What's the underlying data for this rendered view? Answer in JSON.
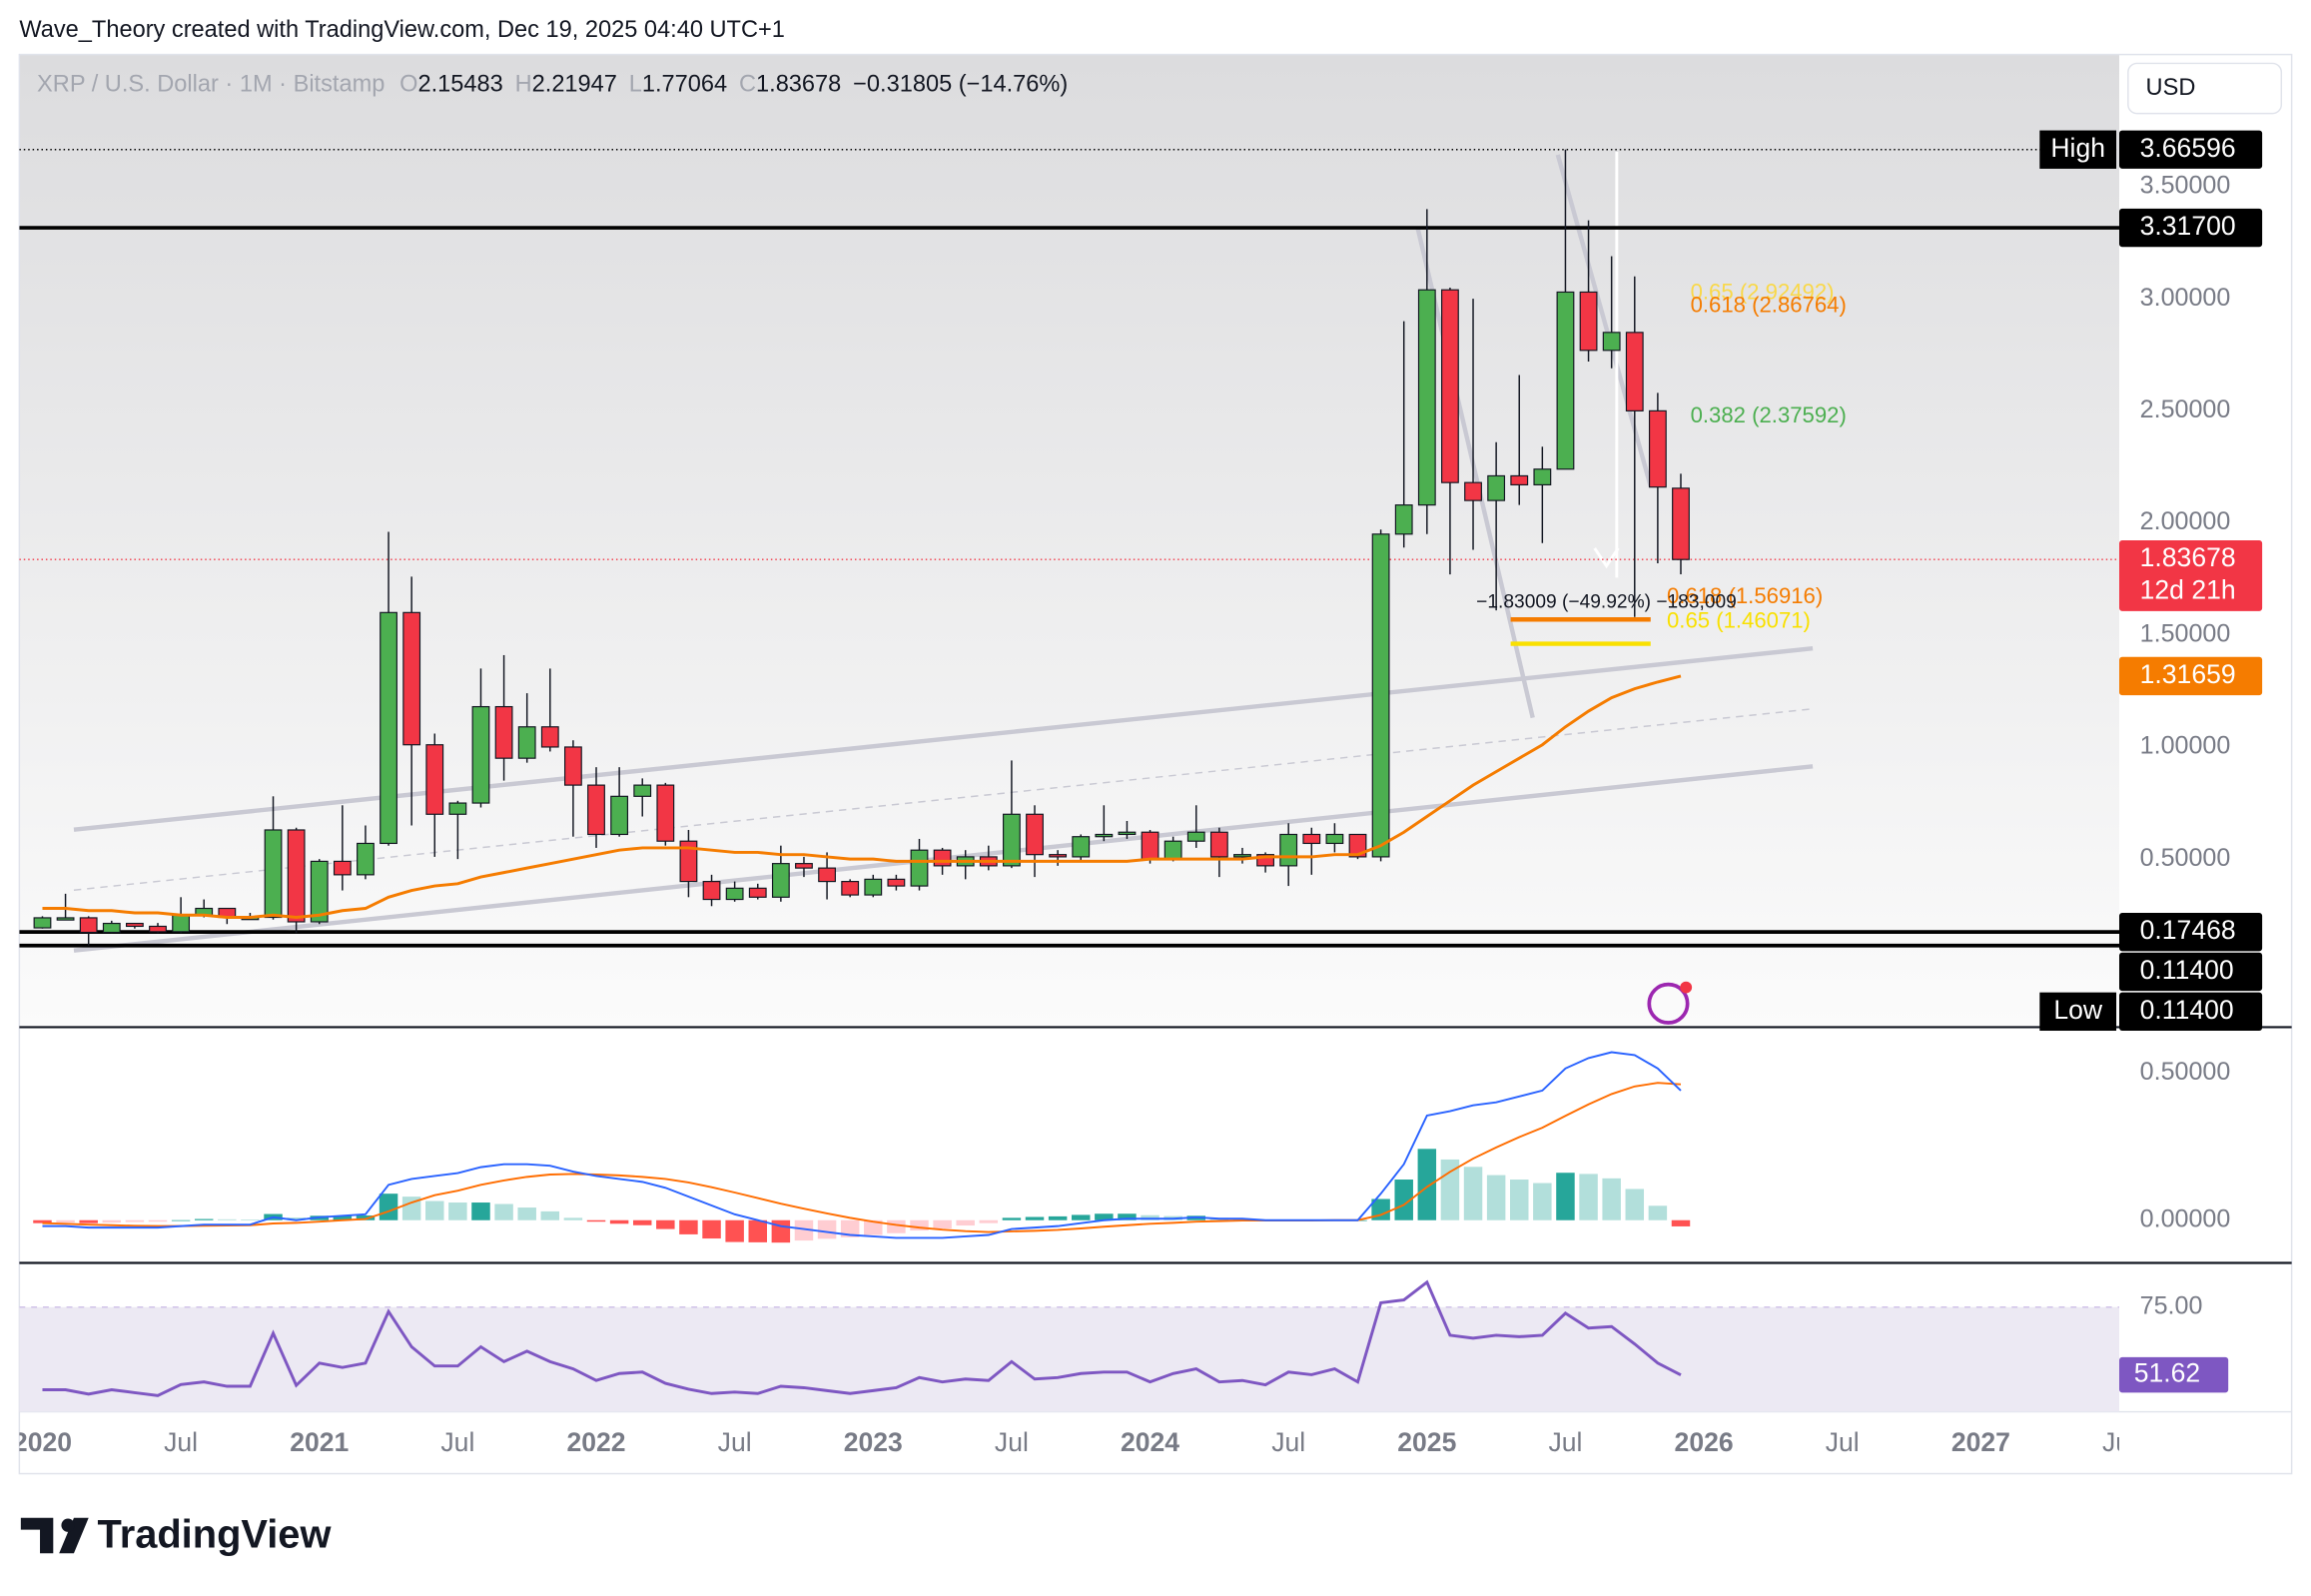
{
  "header": {
    "caption": "Wave_Theory created with TradingView.com, Dec 19, 2025 04:40 UTC+1"
  },
  "footer": {
    "brand": "TradingView"
  },
  "currency": "USD",
  "chart_data": [
    {
      "type": "candlestick",
      "title": "XRP / U.S. Dollar · 1M · Bitstamp",
      "ohlc_labels": [
        "O",
        "H",
        "L",
        "C"
      ],
      "change": "−0.31805 (−14.76%)",
      "x": [
        "2020-01",
        "2020-02",
        "2020-03",
        "2020-04",
        "2020-05",
        "2020-06",
        "2020-07",
        "2020-08",
        "2020-09",
        "2020-10",
        "2020-11",
        "2020-12",
        "2021-01",
        "2021-02",
        "2021-03",
        "2021-04",
        "2021-05",
        "2021-06",
        "2021-07",
        "2021-08",
        "2021-09",
        "2021-10",
        "2021-11",
        "2021-12",
        "2022-01",
        "2022-02",
        "2022-03",
        "2022-04",
        "2022-05",
        "2022-06",
        "2022-07",
        "2022-08",
        "2022-09",
        "2022-10",
        "2022-11",
        "2022-12",
        "2023-01",
        "2023-02",
        "2023-03",
        "2023-04",
        "2023-05",
        "2023-06",
        "2023-07",
        "2023-08",
        "2023-09",
        "2023-10",
        "2023-11",
        "2023-12",
        "2024-01",
        "2024-02",
        "2024-03",
        "2024-04",
        "2024-05",
        "2024-06",
        "2024-07",
        "2024-08",
        "2024-09",
        "2024-10",
        "2024-11",
        "2024-12",
        "2025-01",
        "2025-02",
        "2025-03",
        "2025-04",
        "2025-05",
        "2025-06",
        "2025-07",
        "2025-08",
        "2025-09",
        "2025-10",
        "2025-11",
        "2025-12"
      ],
      "open": [
        0.193,
        0.238,
        0.238,
        0.173,
        0.213,
        0.2,
        0.176,
        0.25,
        0.28,
        0.24,
        0.24,
        0.63,
        0.22,
        0.49,
        0.43,
        0.57,
        1.6,
        1.01,
        0.7,
        0.75,
        1.18,
        0.95,
        1.09,
        1.0,
        0.83,
        0.61,
        0.78,
        0.83,
        0.58,
        0.4,
        0.32,
        0.37,
        0.33,
        0.48,
        0.46,
        0.4,
        0.34,
        0.41,
        0.38,
        0.54,
        0.47,
        0.51,
        0.47,
        0.7,
        0.52,
        0.51,
        0.6,
        0.61,
        0.62,
        0.5,
        0.58,
        0.62,
        0.51,
        0.52,
        0.47,
        0.61,
        0.57,
        0.61,
        0.51,
        1.95,
        2.08,
        3.04,
        2.18,
        2.1,
        2.21,
        2.17,
        2.24,
        3.03,
        2.77,
        2.85,
        2.5,
        2.15483
      ],
      "high": [
        0.245,
        0.345,
        0.245,
        0.225,
        0.215,
        0.215,
        0.33,
        0.32,
        0.28,
        0.26,
        0.78,
        0.64,
        0.5,
        0.74,
        0.65,
        1.96,
        1.76,
        1.06,
        0.76,
        1.35,
        1.41,
        1.24,
        1.35,
        1.03,
        0.91,
        0.91,
        0.86,
        0.84,
        0.63,
        0.43,
        0.4,
        0.39,
        0.56,
        0.51,
        0.53,
        0.41,
        0.43,
        0.43,
        0.59,
        0.55,
        0.54,
        0.56,
        0.94,
        0.74,
        0.54,
        0.61,
        0.74,
        0.67,
        0.63,
        0.6,
        0.74,
        0.64,
        0.55,
        0.53,
        0.66,
        0.64,
        0.66,
        0.61,
        1.97,
        2.9,
        3.4,
        3.05,
        3.0,
        2.36,
        2.66,
        2.34,
        3.66596,
        3.35,
        3.19,
        3.1,
        2.58,
        2.21947
      ],
      "low": [
        0.19,
        0.23,
        0.114,
        0.17,
        0.19,
        0.17,
        0.17,
        0.24,
        0.21,
        0.23,
        0.23,
        0.17,
        0.21,
        0.36,
        0.41,
        0.56,
        0.65,
        0.51,
        0.5,
        0.73,
        0.85,
        0.93,
        0.98,
        0.6,
        0.55,
        0.6,
        0.69,
        0.56,
        0.33,
        0.29,
        0.31,
        0.32,
        0.31,
        0.42,
        0.32,
        0.33,
        0.33,
        0.36,
        0.36,
        0.43,
        0.41,
        0.45,
        0.46,
        0.42,
        0.47,
        0.49,
        0.58,
        0.59,
        0.48,
        0.49,
        0.55,
        0.42,
        0.48,
        0.44,
        0.38,
        0.43,
        0.53,
        0.5,
        0.49,
        1.89,
        1.95,
        1.77,
        1.88,
        1.61,
        2.08,
        1.91,
        2.24,
        2.72,
        2.69,
        1.58,
        1.82,
        1.77064
      ],
      "close": [
        0.238,
        0.238,
        0.173,
        0.213,
        0.2,
        0.176,
        0.25,
        0.28,
        0.24,
        0.24,
        0.63,
        0.22,
        0.49,
        0.43,
        0.57,
        1.6,
        1.01,
        0.7,
        0.75,
        1.18,
        0.95,
        1.09,
        1.0,
        0.83,
        0.61,
        0.78,
        0.83,
        0.58,
        0.4,
        0.32,
        0.37,
        0.33,
        0.48,
        0.46,
        0.4,
        0.34,
        0.41,
        0.38,
        0.54,
        0.47,
        0.51,
        0.47,
        0.7,
        0.52,
        0.51,
        0.6,
        0.61,
        0.62,
        0.5,
        0.58,
        0.62,
        0.51,
        0.52,
        0.47,
        0.61,
        0.57,
        0.61,
        0.51,
        1.95,
        2.08,
        3.04,
        2.18,
        2.1,
        2.21,
        2.17,
        2.24,
        3.03,
        2.77,
        2.85,
        2.5,
        2.16,
        1.83678
      ],
      "up_color": "#4caf50",
      "down_color": "#f23645",
      "ma": {
        "color": "#f57c00",
        "values": [
          0.28,
          0.28,
          0.27,
          0.27,
          0.26,
          0.26,
          0.25,
          0.25,
          0.24,
          0.24,
          0.25,
          0.24,
          0.25,
          0.27,
          0.28,
          0.33,
          0.36,
          0.38,
          0.39,
          0.42,
          0.44,
          0.46,
          0.48,
          0.5,
          0.52,
          0.54,
          0.55,
          0.55,
          0.55,
          0.54,
          0.53,
          0.53,
          0.52,
          0.52,
          0.51,
          0.5,
          0.5,
          0.49,
          0.49,
          0.49,
          0.49,
          0.49,
          0.49,
          0.49,
          0.49,
          0.49,
          0.49,
          0.49,
          0.5,
          0.5,
          0.5,
          0.5,
          0.5,
          0.51,
          0.51,
          0.51,
          0.52,
          0.52,
          0.56,
          0.62,
          0.69,
          0.76,
          0.83,
          0.89,
          0.95,
          1.01,
          1.09,
          1.16,
          1.22,
          1.26,
          1.29,
          1.31659
        ]
      },
      "ylim": [
        -0.25,
        4.09
      ],
      "yticks": [
        {
          "value": 0.5,
          "label": "0.50000"
        },
        {
          "value": 1,
          "label": "1.00000"
        },
        {
          "value": 1.5,
          "label": "1.50000"
        },
        {
          "value": 2,
          "label": "2.00000"
        },
        {
          "value": 2.5,
          "label": "2.50000"
        },
        {
          "value": 3,
          "label": "3.00000"
        },
        {
          "value": 3.5,
          "label": "3.50000"
        }
      ],
      "xlim": [
        "2019-12",
        "2027-07"
      ],
      "xticks": [
        {
          "value": "2020-01",
          "label": "2020"
        },
        {
          "value": "2020-07",
          "label": "Jul"
        },
        {
          "value": "2021-01",
          "label": "2021"
        },
        {
          "value": "2021-07",
          "label": "Jul"
        },
        {
          "value": "2022-01",
          "label": "2022"
        },
        {
          "value": "2022-07",
          "label": "Jul"
        },
        {
          "value": "2023-01",
          "label": "2023"
        },
        {
          "value": "2023-07",
          "label": "Jul"
        },
        {
          "value": "2024-01",
          "label": "2024"
        },
        {
          "value": "2024-07",
          "label": "Jul"
        },
        {
          "value": "2025-01",
          "label": "2025"
        },
        {
          "value": "2025-07",
          "label": "Jul"
        },
        {
          "value": "2026-01",
          "label": "2026"
        },
        {
          "value": "2026-07",
          "label": "Jul"
        },
        {
          "value": "2027-01",
          "label": "2027"
        },
        {
          "value": "2027-07",
          "label": "Jul"
        }
      ],
      "price_levels": [
        {
          "value": 3.66596,
          "label": "3.66596",
          "tag": "High",
          "color": "#000000",
          "line": "dotted"
        },
        {
          "value": 3.317,
          "label": "3.31700",
          "color": "#000000",
          "line": "solid"
        },
        {
          "value": 1.83678,
          "label": "1.83678",
          "countdown": "12d 21h",
          "color": "#f23645",
          "line": "dotted"
        },
        {
          "value": 1.31659,
          "label": "1.31659",
          "color": "#f57c00"
        },
        {
          "value": 0.17468,
          "label": "0.17468",
          "color": "#000000",
          "line": "solid"
        },
        {
          "value": 0.114,
          "label": "0.11400",
          "color": "#000000",
          "line": "solid"
        },
        {
          "value": 0.114,
          "label": "0.11400",
          "tag": "Low",
          "color": "#000000"
        }
      ],
      "fib_levels": [
        {
          "label": "0.65 (2.92492)",
          "value": 2.92492,
          "color": "#f9d849",
          "line": false
        },
        {
          "label": "0.618 (2.86764)",
          "value": 2.86764,
          "color": "#f57c00",
          "line": false
        },
        {
          "label": "0.382 (2.37592)",
          "value": 2.37592,
          "color": "#4caf50",
          "line": false
        },
        {
          "label": "0.618 (1.56916)",
          "value": 1.56916,
          "color": "#f57c00",
          "line": true
        },
        {
          "label": "0.65 (1.46071)",
          "value": 1.46071,
          "color": "#f9e000",
          "line": true
        }
      ],
      "measurement": "−1.83009 (−49.92%) −183,009"
    },
    {
      "type": "macd",
      "ylim": [
        -0.145,
        0.655
      ],
      "yticks": [
        {
          "value": 0.5,
          "label": "0.50000"
        },
        {
          "value": 0,
          "label": "0.00000"
        }
      ],
      "macd": {
        "color": "#2962ff",
        "values": [
          -0.02,
          -0.02,
          -0.025,
          -0.025,
          -0.025,
          -0.025,
          -0.02,
          -0.015,
          -0.015,
          -0.015,
          0.01,
          0.0,
          0.01,
          0.015,
          0.02,
          0.12,
          0.14,
          0.15,
          0.16,
          0.18,
          0.19,
          0.19,
          0.185,
          0.165,
          0.15,
          0.14,
          0.13,
          0.11,
          0.08,
          0.05,
          0.02,
          0.0,
          -0.02,
          -0.03,
          -0.04,
          -0.05,
          -0.055,
          -0.06,
          -0.06,
          -0.06,
          -0.055,
          -0.05,
          -0.03,
          -0.025,
          -0.02,
          -0.01,
          0.0,
          0.005,
          0.005,
          0.005,
          0.01,
          0.005,
          0.005,
          0.0,
          0.0,
          0.0,
          0.0,
          0.0,
          0.09,
          0.19,
          0.355,
          0.37,
          0.39,
          0.4,
          0.42,
          0.44,
          0.515,
          0.55,
          0.57,
          0.56,
          0.515,
          0.44
        ]
      },
      "signal": {
        "color": "#ff6d00",
        "values": [
          -0.01,
          -0.012,
          -0.015,
          -0.017,
          -0.019,
          -0.02,
          -0.02,
          -0.019,
          -0.018,
          -0.017,
          -0.011,
          -0.009,
          -0.005,
          0.0,
          0.004,
          0.03,
          0.06,
          0.085,
          0.1,
          0.12,
          0.135,
          0.147,
          0.155,
          0.157,
          0.155,
          0.152,
          0.147,
          0.14,
          0.128,
          0.112,
          0.094,
          0.075,
          0.056,
          0.039,
          0.023,
          0.008,
          -0.005,
          -0.016,
          -0.025,
          -0.032,
          -0.037,
          -0.04,
          -0.038,
          -0.036,
          -0.033,
          -0.028,
          -0.022,
          -0.017,
          -0.012,
          -0.009,
          -0.005,
          -0.003,
          -0.001,
          -0.001,
          -0.001,
          -0.001,
          0.0,
          0.0,
          0.018,
          0.052,
          0.113,
          0.164,
          0.209,
          0.247,
          0.282,
          0.314,
          0.354,
          0.393,
          0.428,
          0.454,
          0.466,
          0.461
        ]
      },
      "histogram": {
        "colors": [
          "#26a69a",
          "#b2dfdb",
          "#ffcdd2",
          "#ff5252"
        ],
        "values": [
          -0.01,
          -0.008,
          -0.01,
          -0.008,
          -0.006,
          -0.005,
          0.0,
          0.004,
          0.003,
          0.002,
          0.021,
          0.009,
          0.015,
          0.015,
          0.016,
          0.09,
          0.08,
          0.065,
          0.06,
          0.06,
          0.055,
          0.043,
          0.03,
          0.008,
          -0.005,
          -0.012,
          -0.017,
          -0.03,
          -0.048,
          -0.062,
          -0.074,
          -0.075,
          -0.076,
          -0.069,
          -0.063,
          -0.058,
          -0.05,
          -0.044,
          -0.035,
          -0.028,
          -0.018,
          -0.01,
          0.008,
          0.011,
          0.013,
          0.018,
          0.022,
          0.022,
          0.017,
          0.014,
          0.015,
          0.008,
          0.006,
          0.001,
          0.001,
          0.001,
          0.0,
          0.0,
          0.072,
          0.138,
          0.242,
          0.206,
          0.181,
          0.153,
          0.138,
          0.126,
          0.161,
          0.157,
          0.142,
          0.106,
          0.049,
          -0.021
        ]
      }
    },
    {
      "type": "line",
      "ylim": [
        38.9,
        90.25
      ],
      "yticks": [
        {
          "value": 75,
          "label": "75.00"
        }
      ],
      "color": "#7e57c2",
      "band_color": "#ece9f3",
      "values": [
        46.5,
        46.5,
        45,
        46.5,
        45.5,
        44.5,
        48.3,
        49.2,
        47.7,
        47.7,
        66,
        48,
        55.7,
        54.2,
        55.7,
        73.5,
        61.3,
        54.7,
        54.7,
        61.3,
        56.2,
        59.8,
        56.2,
        53.7,
        49.7,
        52.1,
        52.6,
        48.7,
        46.7,
        45.2,
        45.7,
        45.2,
        47.7,
        47.2,
        46.2,
        45.2,
        46.2,
        47.2,
        50.7,
        49.2,
        50.2,
        49.7,
        56.2,
        50.2,
        50.7,
        52.1,
        52.6,
        52.6,
        49.2,
        52.1,
        53.7,
        49.2,
        49.7,
        48.2,
        52.6,
        51.7,
        53.7,
        49.2,
        76.5,
        77.5,
        83.6,
        65.3,
        64.3,
        65.3,
        64.8,
        65.3,
        72.9,
        67.8,
        68.3,
        62.3,
        55.7,
        51.62
      ]
    }
  ]
}
